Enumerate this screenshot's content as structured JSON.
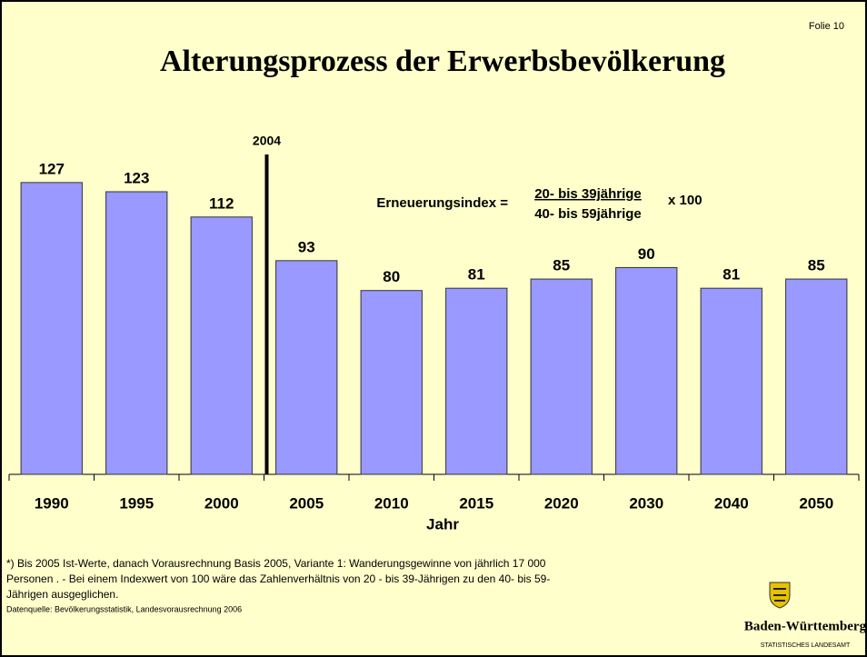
{
  "slide_label": "Folie 10",
  "chart_data": {
    "type": "bar",
    "title": "Alterungsprozess der Erwerbsbevölkerung",
    "categories": [
      "1990",
      "1995",
      "2000",
      "2005",
      "2010",
      "2015",
      "2020",
      "2030",
      "2040",
      "2050"
    ],
    "values": [
      127,
      123,
      112,
      93,
      80,
      81,
      85,
      90,
      81,
      85
    ],
    "color": "#9999ff",
    "ylim": [
      0,
      140
    ],
    "x_label": "Jahr",
    "marker_label": "2004",
    "formula": {
      "left": "Erneuerungsindex =",
      "numerator": "20- bis 39jährige",
      "denominator": "40- bis 59jährige",
      "factor": "x 100"
    }
  },
  "footnote": [
    "*) Bis 2005 Ist-Werte, danach Vorausrechnung Basis 2005, Variante 1: Wanderungsgewinne von jährlich  17 000",
    "Personen .  - Bei einem Indexwert von 100 wäre das Zahlenverhältnis von 20 - bis 39-Jährigen zu den 40- bis 59-",
    "Jährigen ausgeglichen."
  ],
  "source": "Datenquelle: Bevölkerungsstatistik, Landesvorausrechnung 2006",
  "logo": {
    "name": "Baden-Württemberg",
    "subtitle": "STATISTISCHES LANDESAMT"
  }
}
